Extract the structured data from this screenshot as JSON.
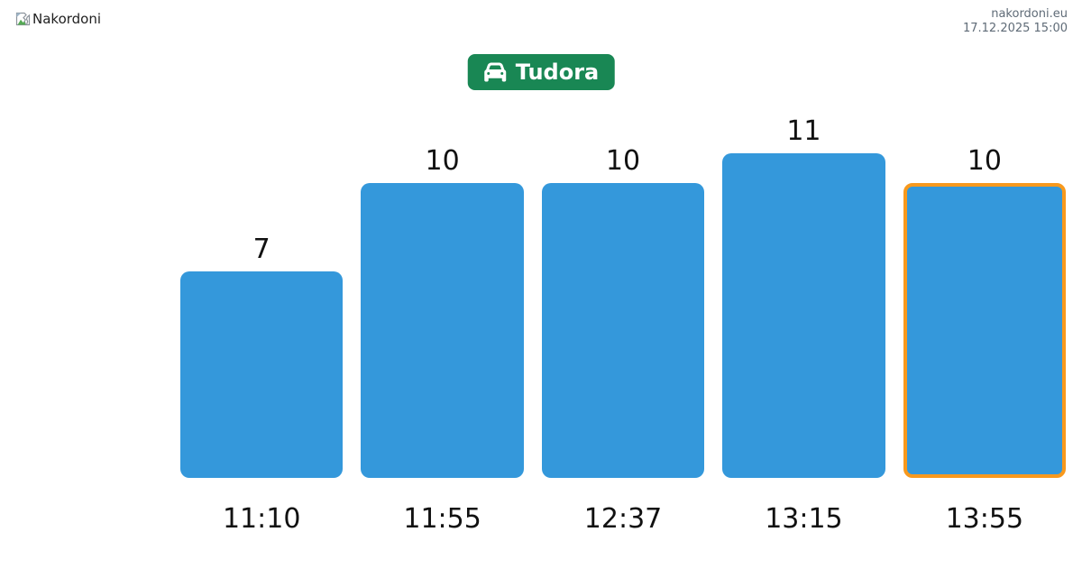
{
  "header": {
    "logo_alt": "Nakordoni",
    "site": "nakordoni.eu",
    "timestamp": "17.12.2025 15:00"
  },
  "badge": {
    "label": "Tudora",
    "icon": "car-icon",
    "bg_color": "#198754",
    "text_color": "#ffffff"
  },
  "chart_data": {
    "type": "bar",
    "categories": [
      "11:10",
      "11:55",
      "12:37",
      "13:15",
      "13:55"
    ],
    "values": [
      7,
      10,
      10,
      11,
      10
    ],
    "title": "",
    "xlabel": "",
    "ylabel": "",
    "ylim": [
      0,
      11
    ],
    "grid": false,
    "axes_shown": false,
    "value_labels_shown": true,
    "legend": null,
    "bar_color": "#3498db",
    "highlighted_index": 4,
    "highlight_border_color": "#f8991d"
  }
}
